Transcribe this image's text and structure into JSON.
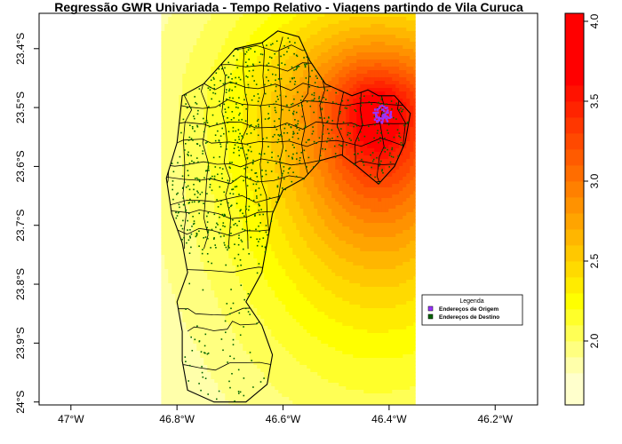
{
  "chart_data": {
    "type": "heatmap",
    "title": "Regressão GWR Univariada - Tempo Relativo - Viagens partindo de Vila Curuca",
    "x_axis": {
      "ticks": [
        {
          "value": -47.0,
          "label": "47°W"
        },
        {
          "value": -46.8,
          "label": "46.8°W"
        },
        {
          "value": -46.6,
          "label": "46.6°W"
        },
        {
          "value": -46.4,
          "label": "46.4°W"
        },
        {
          "value": -46.2,
          "label": "46.2°W"
        }
      ],
      "range": [
        -47.06,
        -46.12
      ]
    },
    "y_axis": {
      "ticks": [
        {
          "value": -23.4,
          "label": "23.4°S"
        },
        {
          "value": -23.5,
          "label": "23.5°S"
        },
        {
          "value": -23.6,
          "label": "23.6°S"
        },
        {
          "value": -23.7,
          "label": "23.7°S"
        },
        {
          "value": -23.8,
          "label": "23.8°S"
        },
        {
          "value": -23.9,
          "label": "23.9°S"
        },
        {
          "value": -24.0,
          "label": "24°S"
        }
      ],
      "range": [
        -24.005,
        -23.34
      ]
    },
    "raster_extent": {
      "lon": [
        -46.83,
        -46.35
      ],
      "lat": [
        -24.005,
        -23.34
      ]
    },
    "color_scale": {
      "breaks": [
        1.6,
        1.8,
        1.9,
        2.0,
        2.1,
        2.2,
        2.3,
        2.4,
        2.5,
        2.6,
        2.7,
        2.8,
        2.9,
        3.0,
        3.1,
        3.2,
        3.3,
        3.4,
        3.5,
        3.6,
        3.7,
        3.8,
        3.9,
        4.0,
        4.05
      ],
      "colors": [
        "#FFFFCC",
        "#FFFFAA",
        "#FFFF80",
        "#FFFF55",
        "#FFFF2A",
        "#FFFF00",
        "#FFEC00",
        "#FFDA00",
        "#FFC800",
        "#FFB600",
        "#FFA400",
        "#FF9200",
        "#FF8000",
        "#FF6D00",
        "#FF5B00",
        "#FF4900",
        "#FF3700",
        "#FF2400",
        "#FF1200",
        "#FF0000",
        "#FF0000",
        "#FF0000",
        "#FF0000",
        "#FF0000"
      ],
      "ticks": [
        {
          "value": 2.0,
          "label": "2.0"
        },
        {
          "value": 2.5,
          "label": "2.5"
        },
        {
          "value": 3.0,
          "label": "3.0"
        },
        {
          "value": 3.5,
          "label": "3.5"
        },
        {
          "value": 4.0,
          "label": "4.0"
        }
      ]
    },
    "gradient_center": {
      "lon": -46.42,
      "lat": -23.51
    },
    "legend": {
      "title": "Legenda",
      "placement": "center-right",
      "entries": [
        {
          "label": "Endereços de Origem",
          "color": "#9933FF"
        },
        {
          "label": "Endereços de Destino",
          "color": "#006400"
        }
      ]
    },
    "grid": false
  }
}
